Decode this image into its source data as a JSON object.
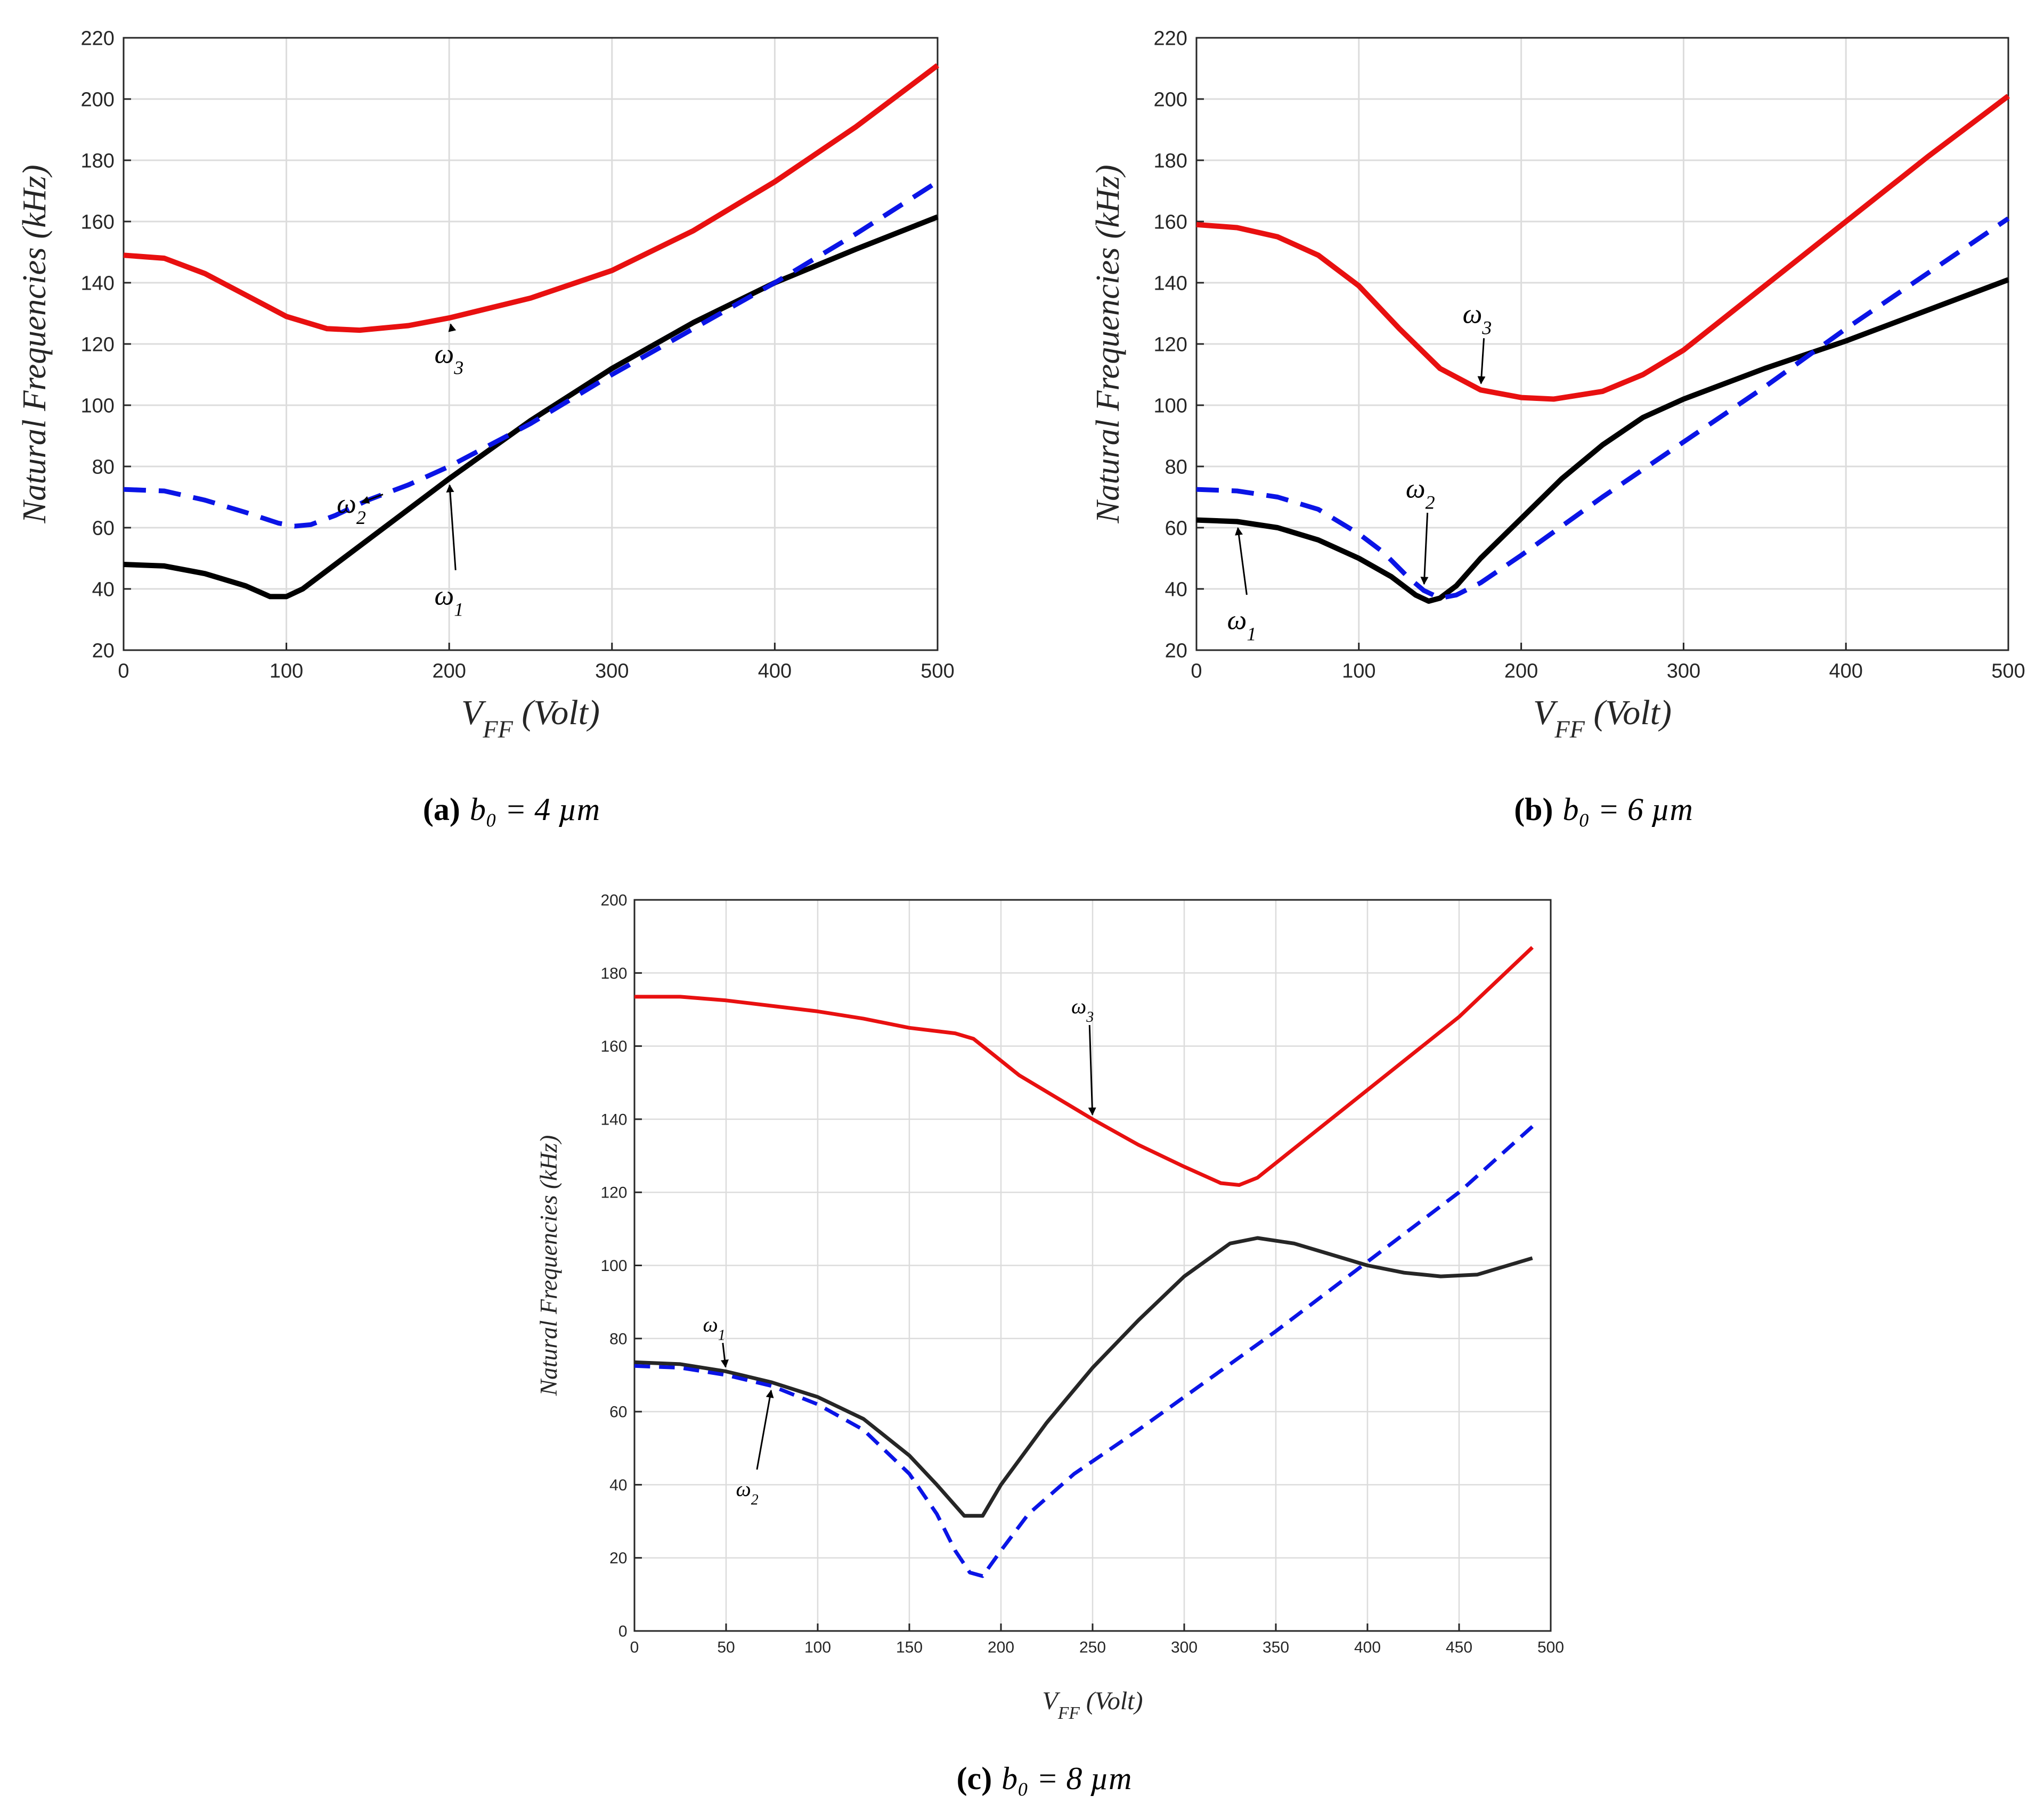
{
  "chart_data": [
    {
      "type": "line",
      "id": "a",
      "caption": {
        "letter": "(a)",
        "text": "b₀ = 4 µm"
      },
      "xlabel": {
        "main": "V",
        "sub": "FF",
        "unit": "(Volt)"
      },
      "ylabel": "Natural Frequencies (kHz)",
      "xlim": [
        0,
        500
      ],
      "ylim": [
        20,
        220
      ],
      "xticks": [
        0,
        100,
        200,
        300,
        400,
        500
      ],
      "yticks": [
        20,
        40,
        60,
        80,
        100,
        120,
        140,
        160,
        180,
        200,
        220
      ],
      "grid": true,
      "series": [
        {
          "name": "ω1",
          "symbol": "ω",
          "sub": "1",
          "color": "#000000",
          "dash": "solid",
          "x": [
            0,
            25,
            50,
            75,
            90,
            100,
            110,
            125,
            150,
            175,
            200,
            250,
            300,
            350,
            400,
            450,
            500
          ],
          "y": [
            48,
            47.5,
            45,
            41,
            37.5,
            37.5,
            40,
            46,
            56,
            66,
            76,
            95,
            112,
            127,
            140,
            151,
            161.5
          ]
        },
        {
          "name": "ω2",
          "symbol": "ω",
          "sub": "2",
          "color": "#0a14e6",
          "dash": "dashed",
          "x": [
            0,
            25,
            50,
            75,
            95,
            105,
            115,
            130,
            150,
            175,
            200,
            250,
            300,
            350,
            400,
            450,
            500
          ],
          "y": [
            72.5,
            72,
            69,
            65,
            61.5,
            60.5,
            61,
            64,
            69,
            74,
            80,
            94,
            110,
            125,
            140,
            156,
            173
          ]
        },
        {
          "name": "ω3",
          "symbol": "ω",
          "sub": "3",
          "color": "#e81010",
          "dash": "solid",
          "x": [
            0,
            25,
            50,
            75,
            100,
            125,
            145,
            175,
            200,
            250,
            300,
            350,
            400,
            450,
            500
          ],
          "y": [
            149,
            148,
            143,
            136,
            129,
            125,
            124.5,
            126,
            128.5,
            135,
            144,
            157,
            173,
            191,
            211
          ]
        }
      ],
      "annotations": [
        {
          "symbol": "ω",
          "sub": "3",
          "x": 205,
          "y": 117
        },
        {
          "symbol": "ω",
          "sub": "2",
          "x": 145,
          "y": 68
        },
        {
          "symbol": "ω",
          "sub": "1",
          "x": 205,
          "y": 38
        }
      ]
    },
    {
      "type": "line",
      "id": "b",
      "caption": {
        "letter": "(b)",
        "text": "b₀ = 6 µm"
      },
      "xlabel": {
        "main": "V",
        "sub": "FF",
        "unit": "(Volt)"
      },
      "ylabel": "Natural Frequencies (kHz)",
      "xlim": [
        0,
        500
      ],
      "ylim": [
        20,
        220
      ],
      "xticks": [
        0,
        100,
        200,
        300,
        400,
        500
      ],
      "yticks": [
        20,
        40,
        60,
        80,
        100,
        120,
        140,
        160,
        180,
        200,
        220
      ],
      "grid": true,
      "series": [
        {
          "name": "ω1",
          "symbol": "ω",
          "sub": "1",
          "color": "#000000",
          "dash": "solid",
          "x": [
            0,
            25,
            50,
            75,
            100,
            120,
            135,
            143,
            150,
            160,
            175,
            200,
            225,
            250,
            275,
            300,
            350,
            400,
            450,
            500
          ],
          "y": [
            62.5,
            62,
            60,
            56,
            50,
            44,
            38,
            36,
            37,
            41,
            50,
            63,
            76,
            87,
            96,
            102,
            112,
            121,
            131,
            141
          ]
        },
        {
          "name": "ω2",
          "symbol": "ω",
          "sub": "2",
          "color": "#0a14e6",
          "dash": "dashed",
          "x": [
            0,
            25,
            50,
            75,
            100,
            115,
            130,
            140,
            150,
            160,
            175,
            200,
            250,
            300,
            350,
            400,
            450,
            500
          ],
          "y": [
            72.5,
            72,
            70,
            66,
            58,
            52,
            44,
            39.5,
            37,
            38,
            42,
            51,
            70,
            88,
            106,
            125,
            143,
            161
          ]
        },
        {
          "name": "ω3",
          "symbol": "ω",
          "sub": "3",
          "color": "#e81010",
          "dash": "solid",
          "x": [
            0,
            25,
            50,
            75,
            100,
            125,
            150,
            175,
            200,
            220,
            250,
            275,
            300,
            350,
            400,
            450,
            500
          ],
          "y": [
            159,
            158,
            155,
            149,
            139,
            125,
            112,
            105,
            102.5,
            102,
            104.5,
            110,
            118,
            139,
            160,
            181,
            201
          ]
        }
      ],
      "annotations": [
        {
          "symbol": "ω",
          "sub": "3",
          "x": 178,
          "y": 130
        },
        {
          "symbol": "ω",
          "sub": "2",
          "x": 143,
          "y": 73
        },
        {
          "symbol": "ω",
          "sub": "1",
          "x": 33,
          "y": 30
        }
      ]
    },
    {
      "type": "line",
      "id": "c",
      "caption": {
        "letter": "(c)",
        "text": "b₀ = 8 µm"
      },
      "xlabel": {
        "main": "V",
        "sub": "FF",
        "unit": "(Volt)"
      },
      "ylabel": "Natural Frequencies (kHz)",
      "xlim": [
        0,
        500
      ],
      "ylim": [
        0,
        200
      ],
      "xticks": [
        0,
        50,
        100,
        150,
        200,
        250,
        300,
        350,
        400,
        450,
        500
      ],
      "yticks": [
        0,
        20,
        40,
        60,
        80,
        100,
        120,
        140,
        160,
        180,
        200
      ],
      "grid": true,
      "series": [
        {
          "name": "ω1",
          "symbol": "ω",
          "sub": "1",
          "color": "#262626",
          "dash": "solid",
          "x": [
            0,
            25,
            50,
            75,
            100,
            125,
            150,
            165,
            180,
            190,
            200,
            225,
            250,
            275,
            300,
            325,
            340,
            360,
            380,
            400,
            420,
            440,
            460,
            490
          ],
          "y": [
            73.5,
            73,
            71,
            68,
            64,
            58,
            48,
            40,
            31.5,
            31.5,
            40,
            57,
            72,
            85,
            97,
            106,
            107.5,
            106,
            103,
            100,
            98,
            97,
            97.5,
            102
          ]
        },
        {
          "name": "ω2",
          "symbol": "ω",
          "sub": "2",
          "color": "#0a14e6",
          "dash": "dashed",
          "x": [
            0,
            25,
            50,
            75,
            100,
            125,
            150,
            165,
            175,
            183,
            190,
            200,
            215,
            240,
            275,
            300,
            350,
            400,
            450,
            490
          ],
          "y": [
            72.5,
            72,
            70,
            67,
            62,
            55,
            43,
            32,
            22,
            16,
            15,
            22,
            32,
            43,
            55,
            64,
            82,
            101,
            120,
            138
          ]
        },
        {
          "name": "ω3",
          "symbol": "ω",
          "sub": "3",
          "color": "#e81010",
          "dash": "solid",
          "x": [
            0,
            25,
            50,
            75,
            100,
            125,
            150,
            175,
            185,
            195,
            210,
            250,
            275,
            300,
            320,
            330,
            340,
            360,
            400,
            450,
            490
          ],
          "y": [
            173.5,
            173.5,
            172.5,
            171,
            169.5,
            167.5,
            165,
            163.5,
            162,
            158,
            152,
            140,
            133,
            127,
            122.5,
            122,
            124,
            132,
            148,
            168,
            187
          ]
        }
      ],
      "annotations": [
        {
          "symbol": "ω",
          "sub": "3",
          "x": 248,
          "y": 171
        },
        {
          "symbol": "ω",
          "sub": "1",
          "x": 47,
          "y": 84
        },
        {
          "symbol": "ω",
          "sub": "2",
          "x": 65,
          "y": 39
        }
      ]
    }
  ]
}
